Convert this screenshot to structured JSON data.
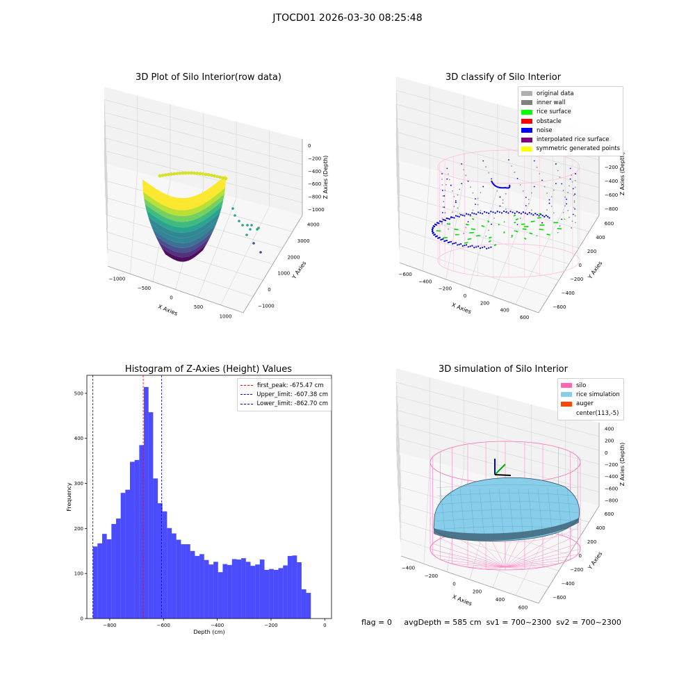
{
  "figure": {
    "suptitle": "JTOCD01 2026-03-30 08:25:48"
  },
  "panels": {
    "raw": {
      "title": "3D Plot of Silo Interior(row data)",
      "xlabel": "X Axies",
      "ylabel": "Y Axies",
      "zlabel": "Z Axies (Depth)",
      "x_ticks": [
        "−1000",
        "−500",
        "0",
        "500",
        "1000"
      ],
      "y_ticks": [
        "−1000",
        "0",
        "1000",
        "2000",
        "3000",
        "4000"
      ],
      "z_ticks": [
        "0",
        "−200",
        "−400",
        "−600",
        "−800",
        "−1000"
      ]
    },
    "classify": {
      "title": "3D classify of Silo Interior",
      "xlabel": "X Axies",
      "ylabel": "Y Axies",
      "zlabel": "Z Axies (Depth)",
      "x_ticks": [
        "−600",
        "−400",
        "−200",
        "0",
        "200",
        "400",
        "600"
      ],
      "y_ticks": [
        "−600",
        "−400",
        "−200",
        "0",
        "200",
        "400",
        "600"
      ],
      "z_ticks": [
        "200",
        "0",
        "−200",
        "−400",
        "−600",
        "−800"
      ],
      "legend": [
        {
          "label": "original data",
          "color": "#b0b0b0"
        },
        {
          "label": "inner wall",
          "color": "#808080"
        },
        {
          "label": "rice surface",
          "color": "#00ff00"
        },
        {
          "label": "obstacle",
          "color": "#ff0000"
        },
        {
          "label": "noise",
          "color": "#0000ff"
        },
        {
          "label": "interpolated rice surface",
          "color": "#800080"
        },
        {
          "label": "symmetric generated points",
          "color": "#ffff00"
        }
      ]
    },
    "simulation": {
      "title": "3D simulation of Silo Interior",
      "xlabel": "X Axies",
      "ylabel": "Y Axies",
      "zlabel": "Z Axies (Depth)",
      "x_ticks": [
        "−400",
        "−200",
        "0",
        "200",
        "400",
        "600"
      ],
      "y_ticks": [
        "−600",
        "−400",
        "−200",
        "0",
        "200",
        "400",
        "600"
      ],
      "z_ticks": [
        "400",
        "200",
        "0",
        "−200",
        "−400",
        "−600",
        "−800"
      ],
      "legend": [
        {
          "label": "silo",
          "color": "#ff69b4"
        },
        {
          "label": "rice simulation",
          "color": "#87ceeb"
        },
        {
          "label": "auger",
          "color": "#ff4500"
        },
        {
          "label": "center(113,-5)",
          "color": ""
        }
      ]
    }
  },
  "status": {
    "flag": "flag = 0",
    "avg_depth": "avgDepth = 585 cm",
    "sv1": "sv1 = 700~2300",
    "sv2": "sv2 = 700~2300"
  },
  "chart_data": [
    {
      "type": "histogram",
      "title": "Histogram of Z-Axies (Height) Values",
      "xlabel": "Depth (cm)",
      "ylabel": "Frequency",
      "xlim": [
        -885,
        25
      ],
      "ylim": [
        0,
        540
      ],
      "x_ticks": [
        -800,
        -600,
        -400,
        -200,
        0
      ],
      "y_ticks": [
        0,
        100,
        200,
        300,
        400,
        500
      ],
      "bin_start": -862.7,
      "bin_width": 17.25,
      "values": [
        160,
        167,
        188,
        176,
        210,
        222,
        279,
        286,
        348,
        352,
        385,
        514,
        458,
        311,
        256,
        238,
        201,
        189,
        175,
        165,
        165,
        150,
        139,
        143,
        130,
        120,
        126,
        103,
        121,
        119,
        132,
        131,
        134,
        126,
        117,
        120,
        131,
        108,
        110,
        108,
        112,
        118,
        139,
        140,
        125,
        65,
        57
      ],
      "color": "#0000ff",
      "lines": [
        {
          "label": "first_peak: -675.47 cm",
          "x": -675.47,
          "color": "#ff0000"
        },
        {
          "label": "Upper_limit: -607.38 cm",
          "x": -607.38,
          "color": "#0000cc"
        },
        {
          "label": "Lower_limit: -862.70 cm",
          "x": -862.7,
          "color": "#0000cc"
        }
      ]
    }
  ]
}
